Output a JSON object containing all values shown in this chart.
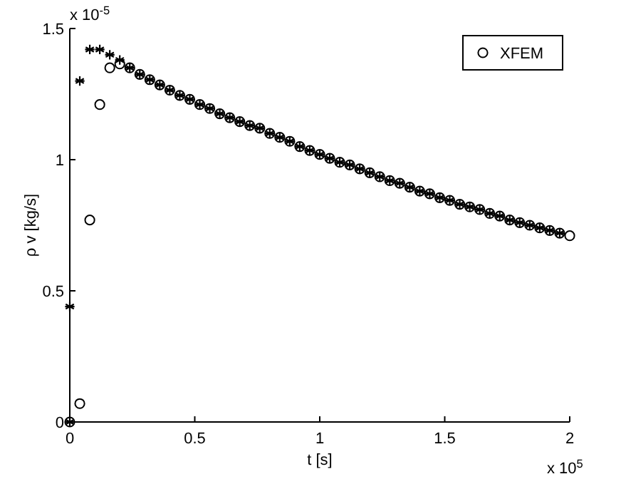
{
  "chart_data": {
    "type": "scatter",
    "xlabel": "t [s]",
    "ylabel": "ρ v [kg/s]",
    "xlim": [
      0,
      2
    ],
    "ylim": [
      0,
      1.5
    ],
    "xticks": [
      0,
      0.5,
      1,
      1.5,
      2
    ],
    "yticks": [
      0,
      0.5,
      1,
      1.5
    ],
    "legend": "top right",
    "grid": false,
    "annotations": [
      "x 10$^{5}$",
      "x 10$^{-5}$"
    ],
    "series": [
      {
        "color": "#000000",
        "marker": "cross",
        "x": [
          0,
          0,
          0.04,
          0.08,
          0.12,
          0.16,
          0.2,
          0.24,
          0.28,
          0.32,
          0.36,
          0.4,
          0.44,
          0.48,
          0.52,
          0.56,
          0.6,
          0.64,
          0.68,
          0.72,
          0.76,
          0.8,
          0.84,
          0.88,
          0.92,
          0.96,
          1,
          1.04,
          1.08,
          1.12,
          1.16,
          1.2,
          1.24,
          1.28,
          1.32,
          1.36,
          1.4,
          1.44,
          1.48,
          1.52,
          1.56,
          1.6,
          1.64,
          1.68,
          1.72,
          1.76,
          1.8,
          1.84,
          1.88,
          1.92,
          1.96
        ],
        "values": [
          0,
          0.44,
          1.3,
          1.42,
          1.42,
          1.4,
          1.38,
          1.35,
          1.325,
          1.305,
          1.285,
          1.265,
          1.245,
          1.23,
          1.21,
          1.195,
          1.175,
          1.16,
          1.145,
          1.13,
          1.12,
          1.1,
          1.085,
          1.07,
          1.05,
          1.035,
          1.02,
          1.005,
          0.99,
          0.98,
          0.965,
          0.95,
          0.935,
          0.92,
          0.91,
          0.895,
          0.88,
          0.87,
          0.855,
          0.845,
          0.83,
          0.82,
          0.81,
          0.795,
          0.785,
          0.77,
          0.76,
          0.75,
          0.74,
          0.73,
          0.72
        ]
      },
      {
        "name": "XFEM",
        "color": "#000000",
        "marker": "circle",
        "x": [
          0,
          0.04,
          0.08,
          0.12,
          0.16,
          0.2,
          0.24,
          0.28,
          0.32,
          0.36,
          0.4,
          0.44,
          0.48,
          0.52,
          0.56,
          0.6,
          0.64,
          0.68,
          0.72,
          0.76,
          0.8,
          0.84,
          0.88,
          0.92,
          0.96,
          1,
          1.04,
          1.08,
          1.12,
          1.16,
          1.2,
          1.24,
          1.28,
          1.32,
          1.36,
          1.4,
          1.44,
          1.48,
          1.52,
          1.56,
          1.6,
          1.64,
          1.68,
          1.72,
          1.76,
          1.8,
          1.84,
          1.88,
          1.92,
          1.96,
          2
        ],
        "values": [
          0,
          0.07,
          0.77,
          1.21,
          1.35,
          1.365,
          1.35,
          1.325,
          1.305,
          1.285,
          1.265,
          1.245,
          1.23,
          1.21,
          1.195,
          1.175,
          1.16,
          1.145,
          1.13,
          1.12,
          1.1,
          1.085,
          1.07,
          1.05,
          1.035,
          1.02,
          1.005,
          0.99,
          0.98,
          0.965,
          0.95,
          0.935,
          0.92,
          0.91,
          0.895,
          0.88,
          0.87,
          0.855,
          0.845,
          0.83,
          0.82,
          0.81,
          0.795,
          0.785,
          0.77,
          0.76,
          0.75,
          0.74,
          0.73,
          0.72,
          0.71
        ]
      }
    ]
  }
}
